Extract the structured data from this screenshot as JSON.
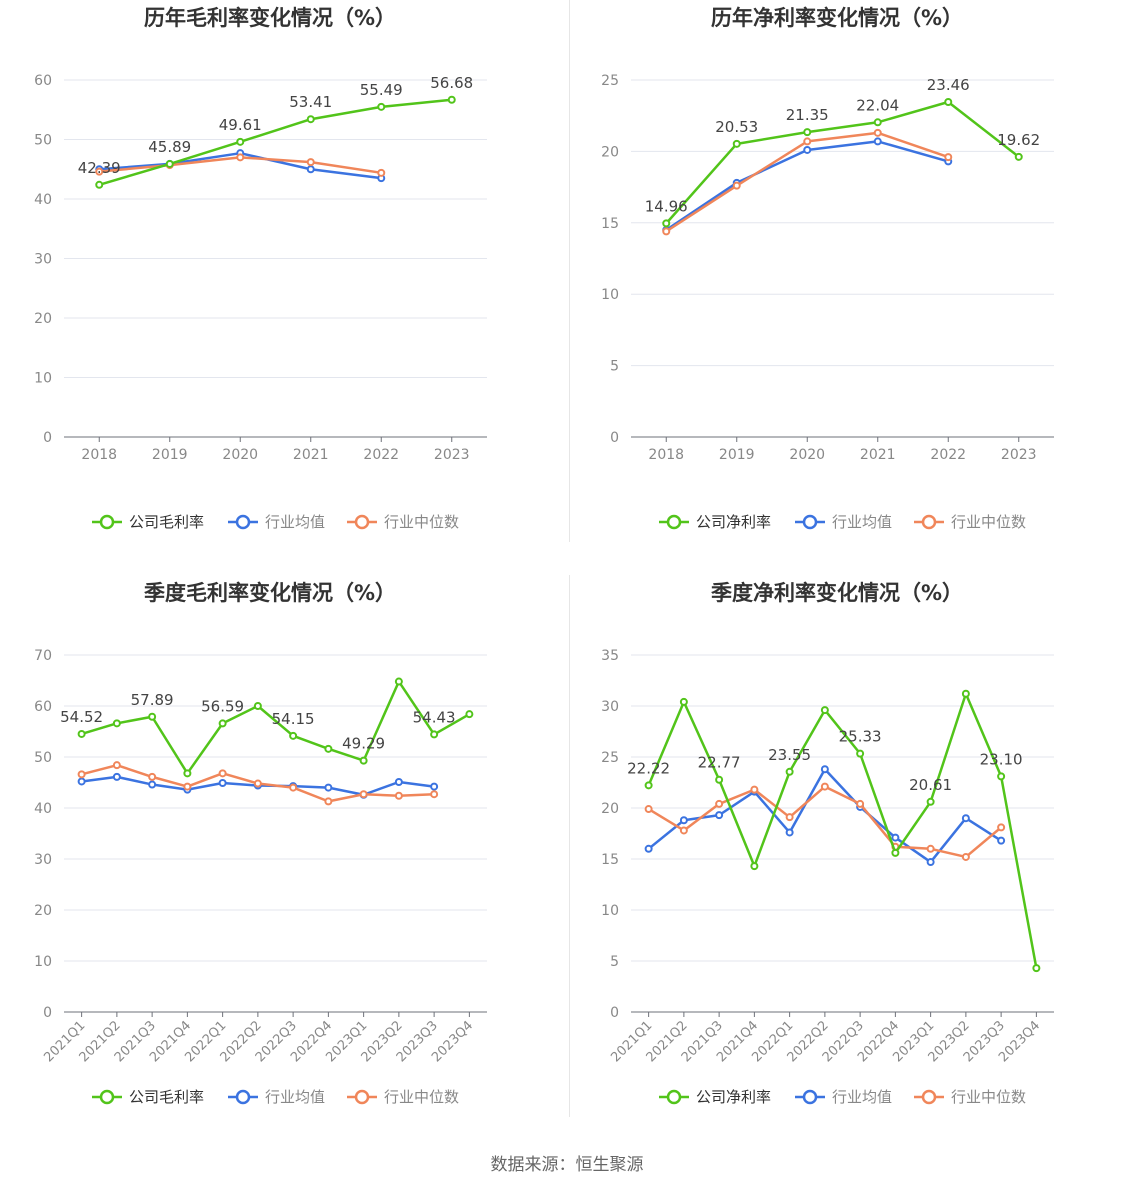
{
  "source_text": "数据来源：恒生聚源",
  "colors": {
    "company": "#52c41a",
    "industry_avg": "#3b73e0",
    "industry_median": "#f0865a"
  },
  "chart_data": [
    {
      "type": "line",
      "title": "历年毛利率变化情况（%）",
      "categories": [
        "2018",
        "2019",
        "2020",
        "2021",
        "2022",
        "2023"
      ],
      "ylim": [
        0,
        60
      ],
      "yticks": [
        0,
        10,
        20,
        30,
        40,
        50,
        60
      ],
      "legend": [
        "公司毛利率",
        "行业均值",
        "行业中位数"
      ],
      "series": [
        {
          "name": "公司毛利率",
          "values": [
            42.39,
            45.89,
            49.61,
            53.41,
            55.49,
            56.68
          ],
          "labels": [
            "42.39",
            "45.89",
            "49.61",
            "53.41",
            "55.49",
            "56.68"
          ]
        },
        {
          "name": "行业均值",
          "values": [
            45.0,
            45.9,
            47.7,
            45.0,
            43.5,
            null
          ]
        },
        {
          "name": "行业中位数",
          "values": [
            44.6,
            45.7,
            47.0,
            46.2,
            44.4,
            null
          ]
        }
      ]
    },
    {
      "type": "line",
      "title": "历年净利率变化情况（%）",
      "categories": [
        "2018",
        "2019",
        "2020",
        "2021",
        "2022",
        "2023"
      ],
      "ylim": [
        0,
        25
      ],
      "yticks": [
        0,
        5,
        10,
        15,
        20,
        25
      ],
      "legend": [
        "公司净利率",
        "行业均值",
        "行业中位数"
      ],
      "series": [
        {
          "name": "公司净利率",
          "values": [
            14.96,
            20.53,
            21.35,
            22.04,
            23.46,
            19.62
          ],
          "labels": [
            "14.96",
            "20.53",
            "21.35",
            "22.04",
            "23.46",
            "19.62"
          ]
        },
        {
          "name": "行业均值",
          "values": [
            14.5,
            17.8,
            20.1,
            20.7,
            19.3,
            null
          ]
        },
        {
          "name": "行业中位数",
          "values": [
            14.4,
            17.6,
            20.7,
            21.3,
            19.6,
            null
          ]
        }
      ]
    },
    {
      "type": "line",
      "title": "季度毛利率变化情况（%）",
      "categories": [
        "2021Q1",
        "2021Q2",
        "2021Q3",
        "2021Q4",
        "2022Q1",
        "2022Q2",
        "2022Q3",
        "2022Q4",
        "2023Q1",
        "2023Q2",
        "2023Q3",
        "2023Q4"
      ],
      "ylim": [
        0,
        70
      ],
      "yticks": [
        0,
        10,
        20,
        30,
        40,
        50,
        60,
        70
      ],
      "legend": [
        "公司毛利率",
        "行业均值",
        "行业中位数"
      ],
      "series": [
        {
          "name": "公司毛利率",
          "values": [
            54.52,
            56.6,
            57.89,
            46.8,
            56.59,
            60.0,
            54.15,
            51.6,
            49.29,
            64.8,
            54.43,
            58.4
          ],
          "labels": [
            "54.52",
            "",
            "57.89",
            "",
            "56.59",
            "",
            "54.15",
            "",
            "49.29",
            "",
            "54.43",
            ""
          ]
        },
        {
          "name": "行业均值",
          "values": [
            45.2,
            46.1,
            44.6,
            43.6,
            44.9,
            44.4,
            44.3,
            44.0,
            42.6,
            45.1,
            44.2,
            null
          ]
        },
        {
          "name": "行业中位数",
          "values": [
            46.6,
            48.4,
            46.1,
            44.2,
            46.8,
            44.8,
            44.0,
            41.3,
            42.7,
            42.4,
            42.7,
            null
          ]
        }
      ]
    },
    {
      "type": "line",
      "title": "季度净利率变化情况（%）",
      "categories": [
        "2021Q1",
        "2021Q2",
        "2021Q3",
        "2021Q4",
        "2022Q1",
        "2022Q2",
        "2022Q3",
        "2022Q4",
        "2023Q1",
        "2023Q2",
        "2023Q3",
        "2023Q4"
      ],
      "ylim": [
        0,
        35
      ],
      "yticks": [
        0,
        5,
        10,
        15,
        20,
        25,
        30,
        35
      ],
      "legend": [
        "公司净利率",
        "行业均值",
        "行业中位数"
      ],
      "series": [
        {
          "name": "公司净利率",
          "values": [
            22.22,
            30.4,
            22.77,
            14.3,
            23.55,
            29.6,
            25.33,
            15.6,
            20.61,
            31.2,
            23.1,
            4.3
          ],
          "labels": [
            "22.22",
            "",
            "22.77",
            "",
            "23.55",
            "",
            "25.33",
            "",
            "20.61",
            "",
            "23.10",
            ""
          ]
        },
        {
          "name": "行业均值",
          "values": [
            16.0,
            18.8,
            19.3,
            21.6,
            17.6,
            23.8,
            20.1,
            17.1,
            14.7,
            19.0,
            16.8,
            null
          ]
        },
        {
          "name": "行业中位数",
          "values": [
            19.9,
            17.8,
            20.4,
            21.8,
            19.1,
            22.1,
            20.4,
            16.2,
            16.0,
            15.2,
            18.1,
            null
          ]
        }
      ]
    }
  ]
}
